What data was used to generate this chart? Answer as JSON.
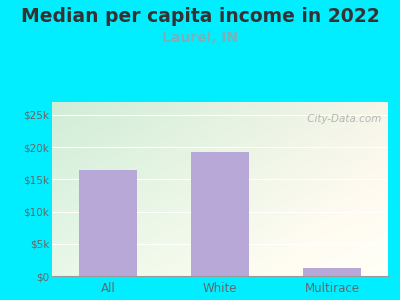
{
  "title": "Median per capita income in 2022",
  "subtitle": "Laurel, IN",
  "categories": [
    "All",
    "White",
    "Multirace"
  ],
  "values": [
    16500,
    19200,
    1200
  ],
  "bar_color": "#b8a8d8",
  "title_fontsize": 13.5,
  "title_color": "#333333",
  "subtitle_fontsize": 10,
  "subtitle_color": "#7ab0b8",
  "tick_label_color": "#666666",
  "background_outer": "#00eeff",
  "ylim": [
    0,
    27000
  ],
  "yticks": [
    0,
    5000,
    10000,
    15000,
    20000,
    25000
  ],
  "ytick_labels": [
    "$0",
    "$5k",
    "$10k",
    "$15k",
    "$20k",
    "$25k"
  ],
  "watermark": " City-Data.com",
  "plot_bg_topleft": "#d0edd8",
  "plot_bg_topright": "#e8edd8",
  "plot_bg_bottomleft": "#e8f8e8",
  "plot_bg_bottomright": "#f5f5e8"
}
